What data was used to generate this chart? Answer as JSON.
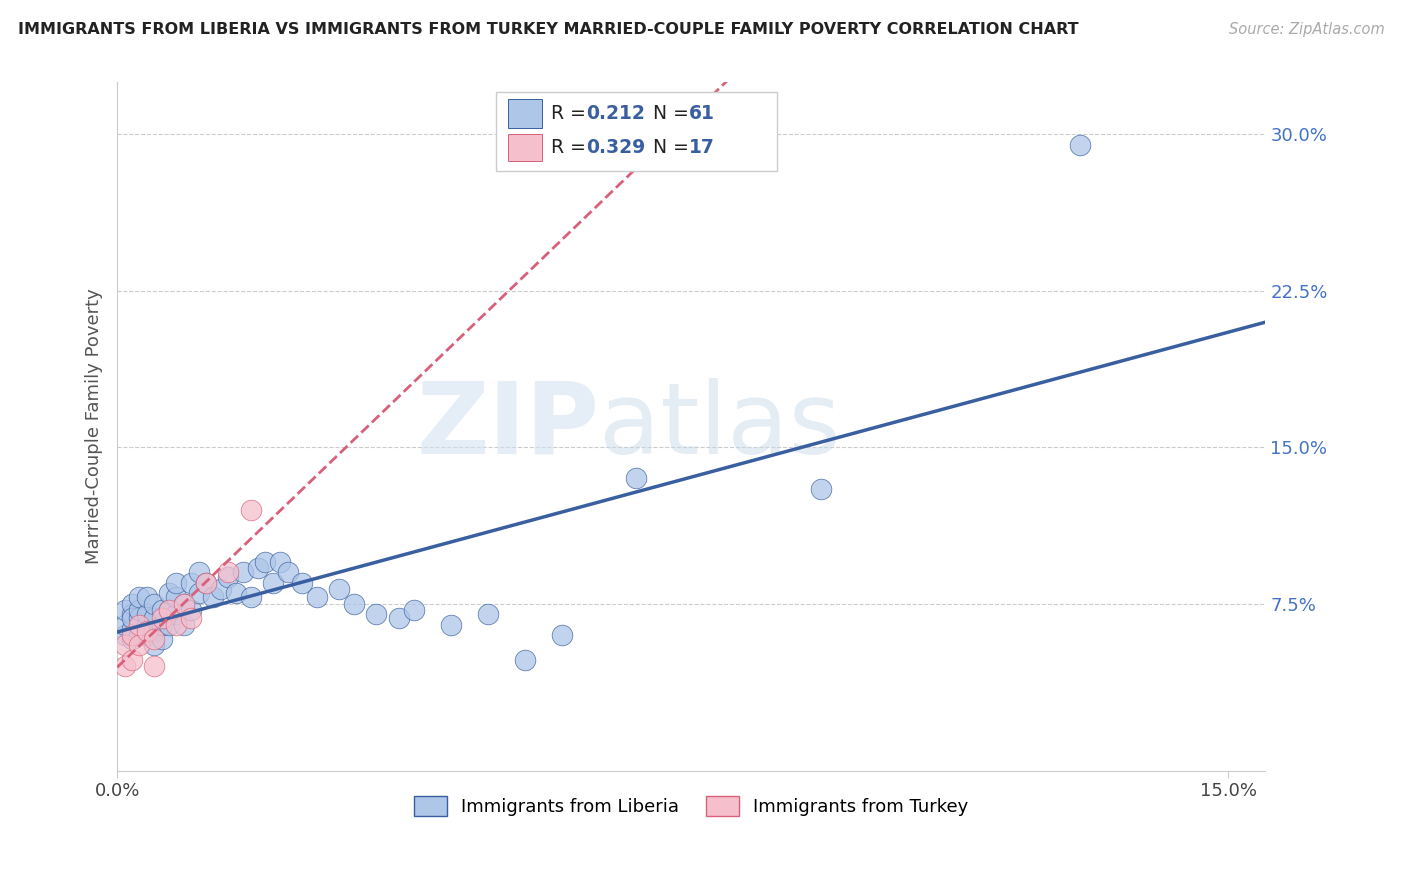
{
  "title": "IMMIGRANTS FROM LIBERIA VS IMMIGRANTS FROM TURKEY MARRIED-COUPLE FAMILY POVERTY CORRELATION CHART",
  "source": "Source: ZipAtlas.com",
  "ylabel": "Married-Couple Family Poverty",
  "xlim": [
    0.0,
    0.155
  ],
  "ylim": [
    -0.005,
    0.325
  ],
  "ytick_labels_right": [
    "7.5%",
    "15.0%",
    "22.5%",
    "30.0%"
  ],
  "ytick_vals_right": [
    0.075,
    0.15,
    0.225,
    0.3
  ],
  "legend1_R": "0.212",
  "legend1_N": "61",
  "legend2_R": "0.329",
  "legend2_N": "17",
  "color_liberia": "#aec6e8",
  "color_turkey": "#f5bfcc",
  "line_color_liberia": "#3a5fa0",
  "line_color_turkey": "#d9607a",
  "watermark_zip": "ZIP",
  "watermark_atlas": "atlas",
  "legend_labels": [
    "Immigrants from Liberia",
    "Immigrants from Turkey"
  ],
  "liberia_x": [
    0.001,
    0.001,
    0.001,
    0.002,
    0.002,
    0.002,
    0.002,
    0.002,
    0.003,
    0.003,
    0.003,
    0.003,
    0.004,
    0.004,
    0.004,
    0.004,
    0.005,
    0.005,
    0.005,
    0.005,
    0.006,
    0.006,
    0.006,
    0.007,
    0.007,
    0.007,
    0.008,
    0.008,
    0.008,
    0.009,
    0.009,
    0.01,
    0.01,
    0.011,
    0.011,
    0.012,
    0.013,
    0.014,
    0.015,
    0.016,
    0.017,
    0.018,
    0.019,
    0.02,
    0.021,
    0.022,
    0.023,
    0.025,
    0.027,
    0.03,
    0.032,
    0.035,
    0.038,
    0.04,
    0.045,
    0.05,
    0.055,
    0.06,
    0.07,
    0.095,
    0.13
  ],
  "liberia_y": [
    0.06,
    0.065,
    0.072,
    0.058,
    0.063,
    0.07,
    0.075,
    0.068,
    0.06,
    0.068,
    0.072,
    0.078,
    0.06,
    0.065,
    0.07,
    0.078,
    0.055,
    0.062,
    0.068,
    0.075,
    0.058,
    0.065,
    0.072,
    0.065,
    0.072,
    0.08,
    0.07,
    0.078,
    0.085,
    0.065,
    0.075,
    0.072,
    0.085,
    0.08,
    0.09,
    0.085,
    0.078,
    0.082,
    0.088,
    0.08,
    0.09,
    0.078,
    0.092,
    0.095,
    0.085,
    0.095,
    0.09,
    0.085,
    0.078,
    0.082,
    0.075,
    0.07,
    0.068,
    0.072,
    0.065,
    0.07,
    0.048,
    0.06,
    0.135,
    0.13,
    0.295
  ],
  "turkey_x": [
    0.001,
    0.001,
    0.002,
    0.002,
    0.003,
    0.003,
    0.004,
    0.005,
    0.005,
    0.006,
    0.007,
    0.008,
    0.009,
    0.01,
    0.012,
    0.015,
    0.018
  ],
  "turkey_y": [
    0.045,
    0.055,
    0.048,
    0.06,
    0.055,
    0.065,
    0.062,
    0.045,
    0.058,
    0.068,
    0.072,
    0.065,
    0.075,
    0.068,
    0.085,
    0.09,
    0.12
  ]
}
